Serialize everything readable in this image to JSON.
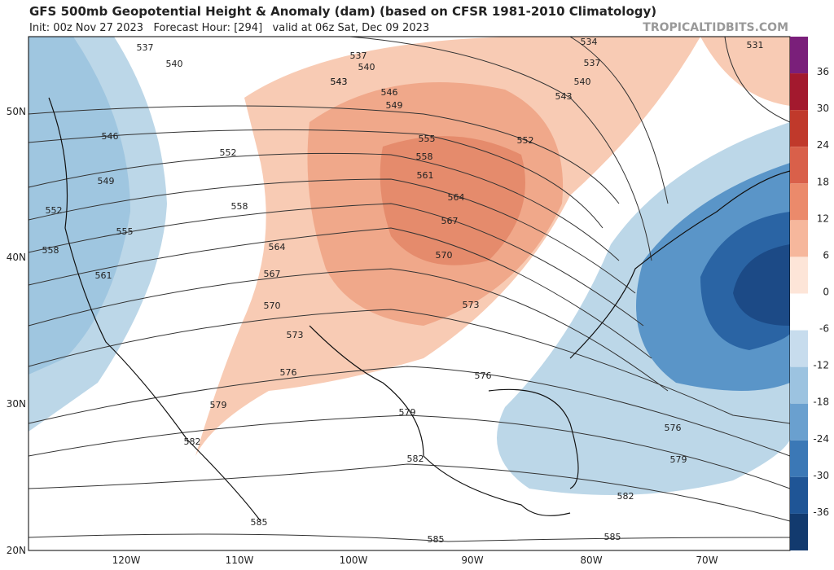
{
  "header": {
    "title": "GFS 500mb Geopotential Height & Anomaly (dam) (based on CFSR 1981-2010 Climatology)",
    "init": "Init: 00z Nov 27 2023   Forecast Hour: [294]   valid at 06z Sat, Dec 09 2023",
    "site": "TROPICALTIDBITS.COM"
  },
  "map": {
    "lat_labels": [
      "50N",
      "40N",
      "30N",
      "20N"
    ],
    "lon_labels": [
      "120W",
      "110W",
      "100W",
      "90W",
      "80W",
      "70W"
    ]
  },
  "colorbar": {
    "labels": [
      "36",
      "30",
      "24",
      "18",
      "12",
      "6",
      "0",
      "-6",
      "-12",
      "-18",
      "-24",
      "-30",
      "-36"
    ]
  },
  "contours": {
    "labels": [
      "537",
      "540",
      "543",
      "546",
      "549",
      "552",
      "555",
      "558",
      "561",
      "552",
      "558",
      "564",
      "567",
      "570",
      "573",
      "576",
      "579",
      "582",
      "585",
      "585",
      "582",
      "579",
      "576",
      "573",
      "570",
      "567",
      "564",
      "561",
      "558",
      "555",
      "552",
      "549",
      "546",
      "543",
      "540",
      "537",
      "534",
      "531",
      "537",
      "540",
      "543",
      "576",
      "579",
      "582",
      "585"
    ]
  }
}
